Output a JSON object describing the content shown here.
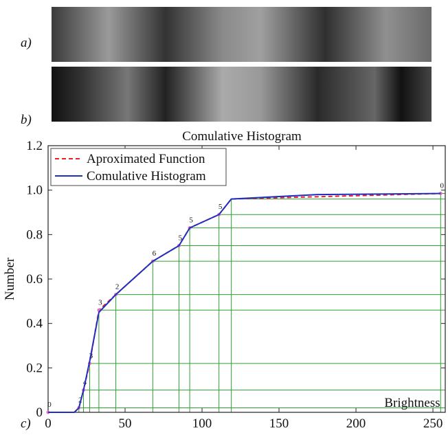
{
  "panel_labels": [
    "a)",
    "b)",
    "c)"
  ],
  "chart_data": {
    "type": "line",
    "title": "Comulative Histogram",
    "x_label": "Brightness",
    "y_label": "Number",
    "xlim": [
      0,
      258
    ],
    "ylim": [
      0,
      1.2
    ],
    "xticks": [
      0,
      50,
      100,
      150,
      200,
      250
    ],
    "yticks": [
      0,
      0.2,
      0.4,
      0.6,
      0.8,
      {
        "value": 1,
        "label": "1.0"
      },
      1.2
    ],
    "legend": "top-left",
    "guide_color": "#2ca02c",
    "series": [
      {
        "name": "Aproximated Function",
        "color": "#e8202a",
        "dash": true,
        "x": [
          0,
          17,
          20,
          23,
          27,
          33,
          44,
          68,
          85,
          92,
          111,
          119,
          255
        ],
        "values": [
          0,
          0,
          0.02,
          0.1,
          0.22,
          0.46,
          0.53,
          0.68,
          0.75,
          0.83,
          0.89,
          0.96,
          0.985
        ],
        "point_labels": [
          "0",
          null,
          "2",
          "4",
          "3",
          "3",
          "2",
          "6",
          "5",
          "5",
          "5",
          null,
          "0"
        ]
      },
      {
        "name": "Comulative Histogram",
        "color": "#1f2fbf",
        "dash": false,
        "x": [
          0,
          17,
          20,
          23,
          27,
          33,
          44,
          68,
          85,
          92,
          111,
          119,
          175,
          255
        ],
        "values": [
          0,
          0,
          0.02,
          0.1,
          0.23,
          0.45,
          0.53,
          0.68,
          0.75,
          0.83,
          0.89,
          0.96,
          0.98,
          0.985
        ]
      }
    ]
  }
}
